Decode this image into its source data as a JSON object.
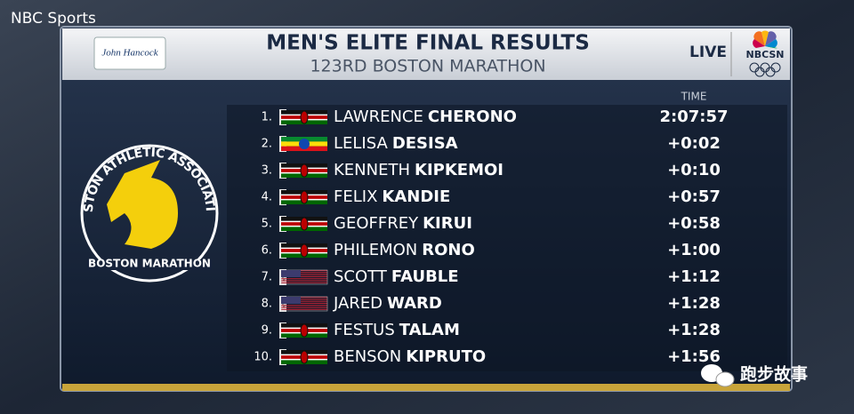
{
  "watermark": "NBC Sports",
  "header": {
    "sponsor": "John Hancock",
    "title": "MEN'S ELITE FINAL RESULTS",
    "subtitle": "123RD BOSTON MARATHON",
    "live": "LIVE",
    "network": "NBCSN"
  },
  "logo": {
    "ring_text": "BOSTON ATHLETIC ASSOCIATION",
    "banner": "BOSTON MARATHON"
  },
  "table": {
    "time_header": "TIME",
    "rows": [
      {
        "rank": "1.",
        "country": "KEN",
        "first": "LAWRENCE",
        "last": "CHERONO",
        "time": "2:07:57"
      },
      {
        "rank": "2.",
        "country": "ETH",
        "first": "LELISA",
        "last": "DESISA",
        "time": "+0:02"
      },
      {
        "rank": "3.",
        "country": "KEN",
        "first": "KENNETH",
        "last": "KIPKEMOI",
        "time": "+0:10"
      },
      {
        "rank": "4.",
        "country": "KEN",
        "first": "FELIX",
        "last": "KANDIE",
        "time": "+0:57"
      },
      {
        "rank": "5.",
        "country": "KEN",
        "first": "GEOFFREY",
        "last": "KIRUI",
        "time": "+0:58"
      },
      {
        "rank": "6.",
        "country": "KEN",
        "first": "PHILEMON",
        "last": "RONO",
        "time": "+1:00"
      },
      {
        "rank": "7.",
        "country": "USA",
        "first": "SCOTT",
        "last": "FAUBLE",
        "time": "+1:12"
      },
      {
        "rank": "8.",
        "country": "USA",
        "first": "JARED",
        "last": "WARD",
        "time": "+1:28"
      },
      {
        "rank": "9.",
        "country": "KEN",
        "first": "FESTUS",
        "last": "TALAM",
        "time": "+1:28"
      },
      {
        "rank": "10.",
        "country": "KEN",
        "first": "BENSON",
        "last": "KIPRUTO",
        "time": "+1:56"
      }
    ]
  },
  "footer_watermark": "跑步故事"
}
